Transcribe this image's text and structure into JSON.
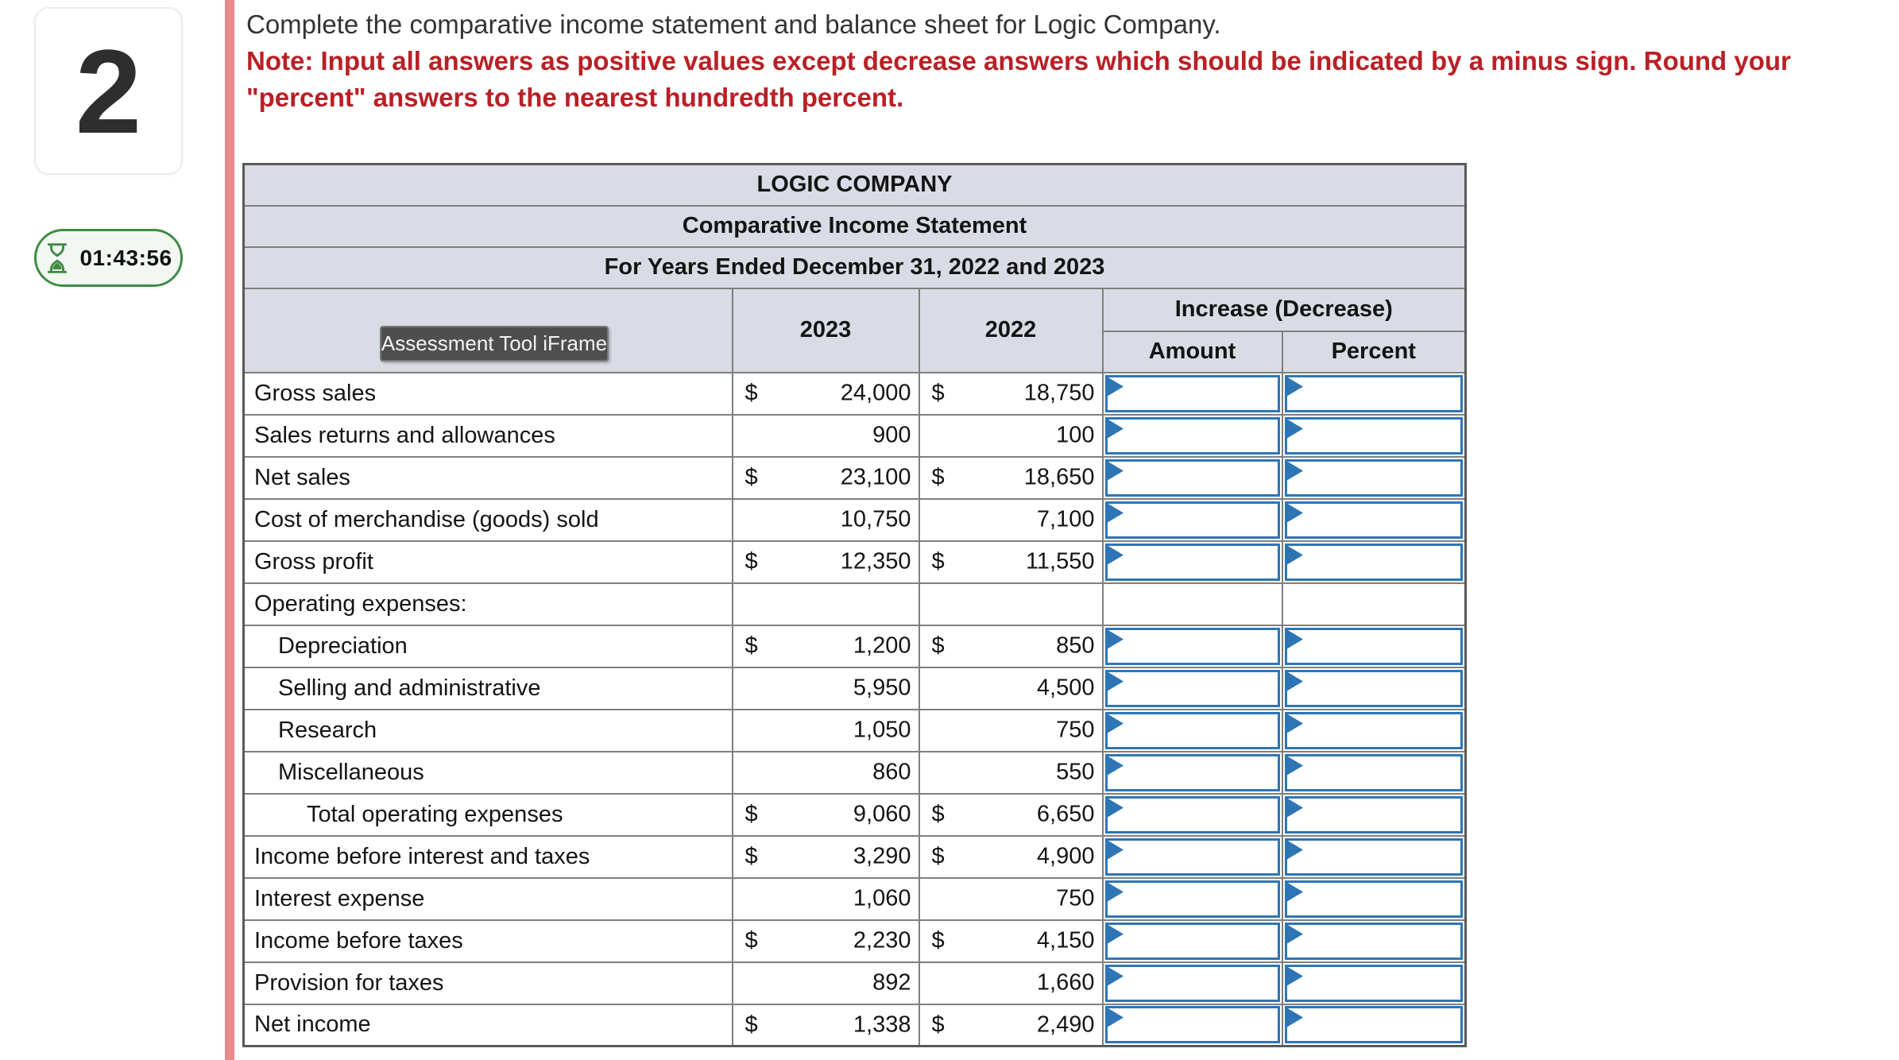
{
  "question": {
    "number": "2"
  },
  "timer": {
    "time": "01:43:56"
  },
  "instructions": {
    "line1": "Complete the comparative income statement and balance sheet for Logic Company.",
    "note_lines": [
      "Note: Input all answers as positive values except decrease answers which should be indicated by a minus sign. Round your",
      "\"percent\" answers to the nearest hundredth percent."
    ]
  },
  "badge": {
    "label": "Assessment Tool iFrame"
  },
  "statement": {
    "title1": "LOGIC COMPANY",
    "title2": "Comparative Income Statement",
    "title3": "For Years Ended December 31, 2022 and 2023",
    "columns": {
      "y2023": "2023",
      "y2022": "2022",
      "increase_decrease": "Increase (Decrease)",
      "amount": "Amount",
      "percent": "Percent"
    },
    "currency_symbol": "$",
    "rows": [
      {
        "label": "Gross sales",
        "indent": 0,
        "dollar": true,
        "v2023": "24,000",
        "v2022": "18,750",
        "has_inputs": true,
        "underline": "none"
      },
      {
        "label": "Sales returns and allowances",
        "indent": 0,
        "dollar": false,
        "v2023": "900",
        "v2022": "100",
        "has_inputs": true,
        "underline": "single"
      },
      {
        "label": "Net sales",
        "indent": 0,
        "dollar": true,
        "v2023": "23,100",
        "v2022": "18,650",
        "has_inputs": true,
        "underline": "none"
      },
      {
        "label": "Cost of merchandise (goods) sold",
        "indent": 0,
        "dollar": false,
        "v2023": "10,750",
        "v2022": "7,100",
        "has_inputs": true,
        "underline": "single"
      },
      {
        "label": "Gross profit",
        "indent": 0,
        "dollar": true,
        "v2023": "12,350",
        "v2022": "11,550",
        "has_inputs": true,
        "underline": "single"
      },
      {
        "label": "Operating expenses:",
        "indent": 0,
        "dollar": false,
        "v2023": null,
        "v2022": null,
        "has_inputs": false,
        "underline": "none"
      },
      {
        "label": "Depreciation",
        "indent": 1,
        "dollar": true,
        "v2023": "1,200",
        "v2022": "850",
        "has_inputs": true,
        "underline": "none"
      },
      {
        "label": "Selling and administrative",
        "indent": 1,
        "dollar": false,
        "v2023": "5,950",
        "v2022": "4,500",
        "has_inputs": true,
        "underline": "none"
      },
      {
        "label": "Research",
        "indent": 1,
        "dollar": false,
        "v2023": "1,050",
        "v2022": "750",
        "has_inputs": true,
        "underline": "none"
      },
      {
        "label": "Miscellaneous",
        "indent": 1,
        "dollar": false,
        "v2023": "860",
        "v2022": "550",
        "has_inputs": true,
        "underline": "single"
      },
      {
        "label": "Total operating expenses",
        "indent": 2,
        "dollar": true,
        "v2023": "9,060",
        "v2022": "6,650",
        "has_inputs": true,
        "underline": "single"
      },
      {
        "label": "Income before interest and taxes",
        "indent": 0,
        "dollar": true,
        "v2023": "3,290",
        "v2022": "4,900",
        "has_inputs": true,
        "underline": "none"
      },
      {
        "label": "Interest expense",
        "indent": 0,
        "dollar": false,
        "v2023": "1,060",
        "v2022": "750",
        "has_inputs": true,
        "underline": "single"
      },
      {
        "label": "Income before taxes",
        "indent": 0,
        "dollar": true,
        "v2023": "2,230",
        "v2022": "4,150",
        "has_inputs": true,
        "underline": "none"
      },
      {
        "label": "Provision for taxes",
        "indent": 0,
        "dollar": false,
        "v2023": "892",
        "v2022": "1,660",
        "has_inputs": true,
        "underline": "single"
      },
      {
        "label": "Net income",
        "indent": 0,
        "dollar": true,
        "v2023": "1,338",
        "v2022": "2,490",
        "has_inputs": true,
        "underline": "double"
      }
    ]
  },
  "colors": {
    "accent_bar": "#e78b8d",
    "note_red": "#b92025",
    "header_fill": "#d9dce5",
    "input_border_blue": "#2e75b6",
    "timer_green": "#3e8c44",
    "grid_gray": "#7f7f7f"
  }
}
